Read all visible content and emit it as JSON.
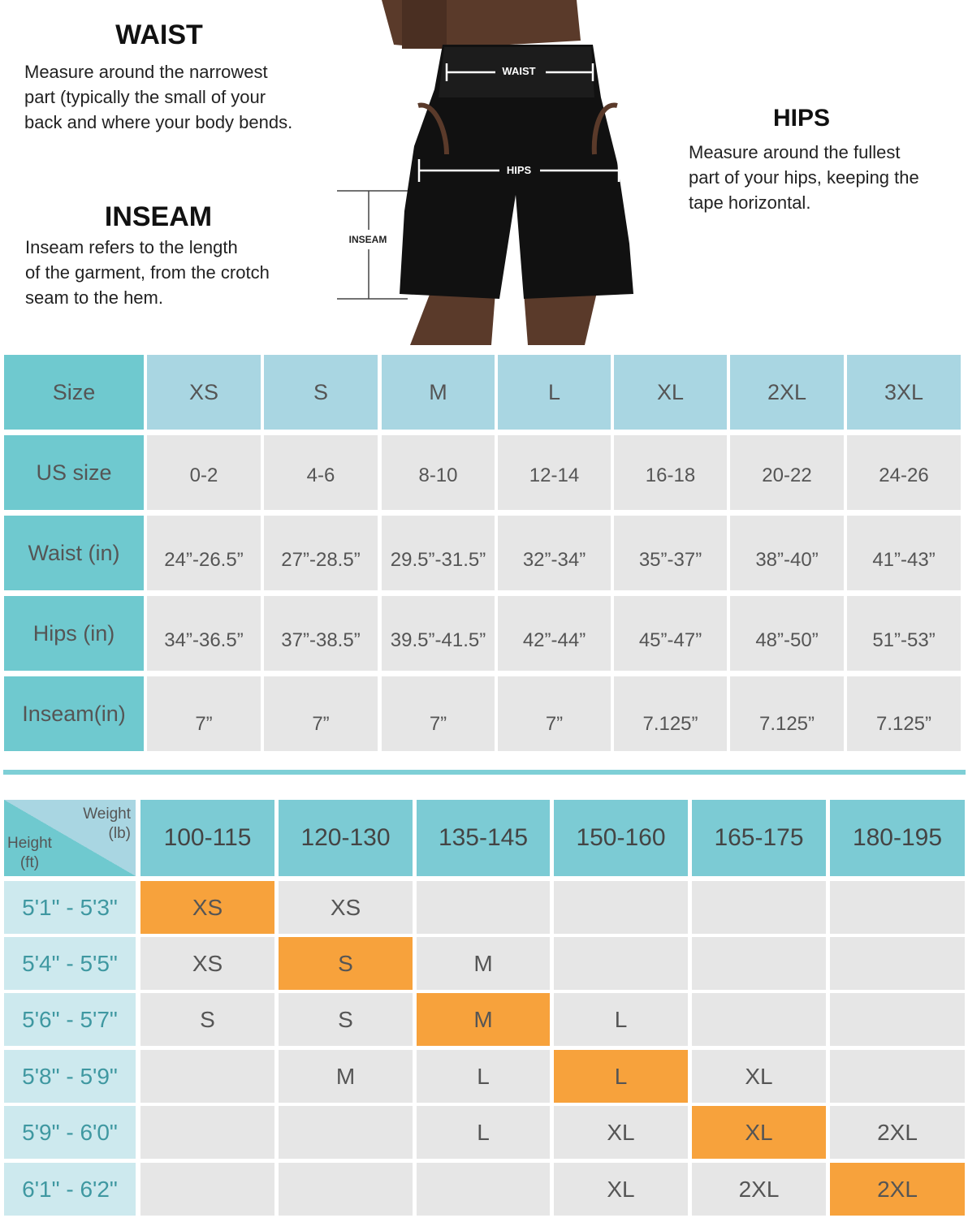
{
  "guide": {
    "waist": {
      "title": "WAIST",
      "lines": [
        "Measure around the narrowest",
        "part (typically the small of your",
        "back and where your body bends."
      ]
    },
    "inseam": {
      "title": "INSEAM",
      "lines": [
        "Inseam refers to the length",
        "of the garment, from the crotch",
        "seam to the hem."
      ]
    },
    "hips": {
      "title": "HIPS",
      "lines": [
        "Measure around the fullest",
        "part of your hips, keeping the",
        "tape horizontal."
      ]
    },
    "labels": {
      "waist": "WAIST",
      "hips": "HIPS",
      "inseam": "INSEAM"
    }
  },
  "size_table": {
    "header": [
      "Size",
      "XS",
      "S",
      "M",
      "L",
      "XL",
      "2XL",
      "3XL"
    ],
    "rows": [
      [
        "US size",
        "0-2",
        "4-6",
        "8-10",
        "12-14",
        "16-18",
        "20-22",
        "24-26"
      ],
      [
        "Waist (in)",
        "24”-26.5”",
        "27”-28.5”",
        "29.5”-31.5”",
        "32”-34”",
        "35”-37”",
        "38”-40”",
        "41”-43”"
      ],
      [
        "Hips (in)",
        "34”-36.5”",
        "37”-38.5”",
        "39.5”-41.5”",
        "42”-44”",
        "45”-47”",
        "48”-50”",
        "51”-53”"
      ],
      [
        "Inseam(in)",
        "7”",
        "7”",
        "7”",
        "7”",
        "7.125”",
        "7.125”",
        "7.125”"
      ]
    ]
  },
  "fit_table": {
    "corner": {
      "weight": [
        "Weight",
        "(lb)"
      ],
      "height": [
        "Height",
        "(ft)"
      ]
    },
    "header": [
      "100-115",
      "120-130",
      "135-145",
      "150-160",
      "165-175",
      "180-195"
    ],
    "rows": [
      {
        "height": "5'1\" - 5'3\"",
        "cells": [
          "XS",
          "XS",
          null,
          null,
          null,
          null
        ],
        "highlight": 0
      },
      {
        "height": "5'4\" - 5'5\"",
        "cells": [
          "XS",
          "S",
          "M",
          null,
          null,
          null
        ],
        "highlight": 1
      },
      {
        "height": "5'6\" - 5'7\"",
        "cells": [
          "S",
          "S",
          "M",
          "L",
          null,
          null
        ],
        "highlight": 2
      },
      {
        "height": "5'8\" - 5'9\"",
        "cells": [
          null,
          "M",
          "L",
          "L",
          "XL",
          null
        ],
        "highlight": 3
      },
      {
        "height": "5'9\" - 6'0\"",
        "cells": [
          null,
          null,
          "L",
          "XL",
          "XL",
          "2XL"
        ],
        "highlight": 4
      },
      {
        "height": "6'1\" - 6'2\"",
        "cells": [
          null,
          null,
          null,
          "XL",
          "2XL",
          "2XL"
        ],
        "highlight": 5
      }
    ]
  }
}
